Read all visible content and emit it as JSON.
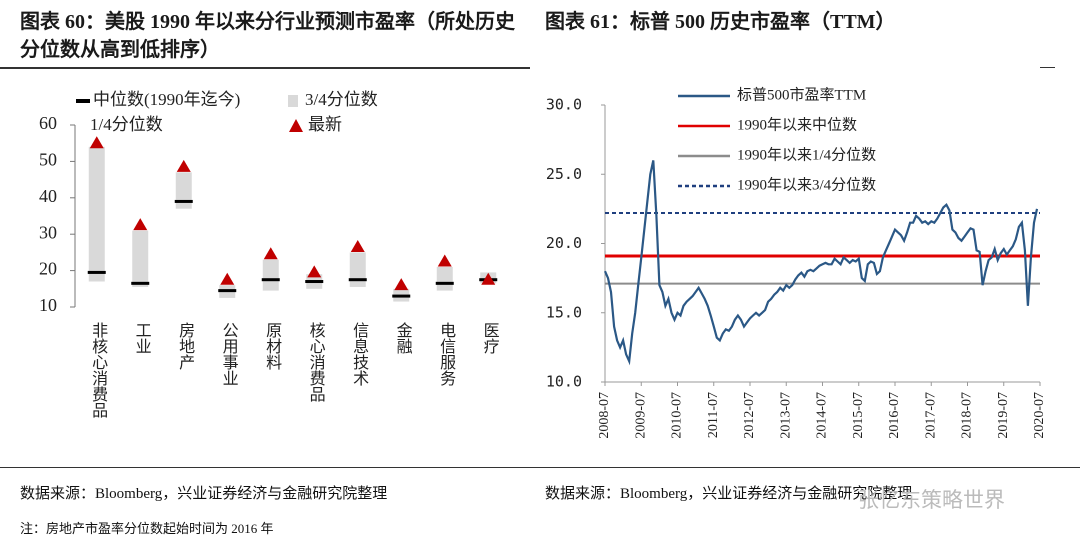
{
  "chart_data": [
    {
      "type": "range",
      "title": "图表 60：美股 1990 年以来分行业预测市盈率（所处历史分位数从高到低排序）",
      "categories": [
        "非核心消费品",
        "工业",
        "房地产",
        "公用事业",
        "原材料",
        "核心消费品",
        "信息技术",
        "金融",
        "电信服务",
        "医疗"
      ],
      "series": [
        {
          "name": "中位数(1990年迄今)",
          "color": "#000000",
          "values": [
            19.5,
            16.5,
            39,
            14.5,
            17.5,
            17,
            17.5,
            13,
            16.5,
            17.5
          ]
        },
        {
          "name": "3/4分位数",
          "color": "#d9d9d9",
          "values": [
            54,
            31,
            47,
            16,
            23,
            19,
            25,
            15,
            21,
            19.5
          ]
        },
        {
          "name": "1/4分位数",
          "color": "#ffffff",
          "values": [
            17,
            15.5,
            37,
            12.5,
            14.5,
            15,
            15.5,
            11.5,
            14.5,
            16.5
          ]
        },
        {
          "name": "最新",
          "color": "#c00000",
          "values": [
            55,
            32.5,
            48.5,
            17.5,
            24.5,
            19.5,
            26.5,
            16,
            22.5,
            17.5
          ]
        }
      ],
      "ylim": [
        10,
        60
      ],
      "yticks": [
        10,
        20,
        30,
        40,
        50,
        60
      ]
    },
    {
      "type": "line",
      "title": "图表 61：标普 500 历史市盈率（TTM）",
      "x": [
        "2008-07",
        "2008-08",
        "2008-09",
        "2008-10",
        "2008-11",
        "2008-12",
        "2009-01",
        "2009-02",
        "2009-03",
        "2009-04",
        "2009-05",
        "2009-06",
        "2009-07",
        "2009-08",
        "2009-09",
        "2009-10",
        "2009-11",
        "2009-12",
        "2010-01",
        "2010-02",
        "2010-03",
        "2010-04",
        "2010-05",
        "2010-06",
        "2010-07",
        "2010-08",
        "2010-09",
        "2010-10",
        "2010-11",
        "2010-12",
        "2011-01",
        "2011-02",
        "2011-03",
        "2011-04",
        "2011-05",
        "2011-06",
        "2011-07",
        "2011-08",
        "2011-09",
        "2011-10",
        "2011-11",
        "2011-12",
        "2012-01",
        "2012-02",
        "2012-03",
        "2012-04",
        "2012-05",
        "2012-06",
        "2012-07",
        "2012-08",
        "2012-09",
        "2012-10",
        "2012-11",
        "2012-12",
        "2013-01",
        "2013-02",
        "2013-03",
        "2013-04",
        "2013-05",
        "2013-06",
        "2013-07",
        "2013-08",
        "2013-09",
        "2013-10",
        "2013-11",
        "2013-12",
        "2014-01",
        "2014-02",
        "2014-03",
        "2014-04",
        "2014-05",
        "2014-06",
        "2014-07",
        "2014-08",
        "2014-09",
        "2014-10",
        "2014-11",
        "2014-12",
        "2015-01",
        "2015-02",
        "2015-03",
        "2015-04",
        "2015-05",
        "2015-06",
        "2015-07",
        "2015-08",
        "2015-09",
        "2015-10",
        "2015-11",
        "2015-12",
        "2016-01",
        "2016-02",
        "2016-03",
        "2016-04",
        "2016-05",
        "2016-06",
        "2016-07",
        "2016-08",
        "2016-09",
        "2016-10",
        "2016-11",
        "2016-12",
        "2017-01",
        "2017-02",
        "2017-03",
        "2017-04",
        "2017-05",
        "2017-06",
        "2017-07",
        "2017-08",
        "2017-09",
        "2017-10",
        "2017-11",
        "2017-12",
        "2018-01",
        "2018-02",
        "2018-03",
        "2018-04",
        "2018-05",
        "2018-06",
        "2018-07",
        "2018-08",
        "2018-09",
        "2018-10",
        "2018-11",
        "2018-12",
        "2019-01",
        "2019-02",
        "2019-03",
        "2019-04",
        "2019-05",
        "2019-06",
        "2019-07",
        "2019-08",
        "2019-09",
        "2019-10",
        "2019-11",
        "2019-12",
        "2020-01",
        "2020-02",
        "2020-03",
        "2020-04",
        "2020-05",
        "2020-06"
      ],
      "series": [
        {
          "name": "标普500市盈率TTM",
          "color": "#2b5886",
          "values": [
            18,
            17.5,
            16.5,
            14,
            13,
            12.5,
            13,
            12,
            11.5,
            13.5,
            15,
            17,
            19,
            21,
            23,
            25,
            26,
            22,
            17,
            16.5,
            15.5,
            16,
            15,
            14.5,
            15,
            14.8,
            15.5,
            15.8,
            16,
            16.2,
            16.5,
            16.8,
            16.4,
            16,
            15.5,
            14.8,
            14,
            13.2,
            13,
            13.5,
            13.8,
            13.7,
            14,
            14.5,
            14.8,
            14.5,
            14,
            14.3,
            14.6,
            14.8,
            15,
            14.8,
            15,
            15.2,
            15.8,
            16,
            16.3,
            16.5,
            16.8,
            16.6,
            17,
            16.8,
            17,
            17.4,
            17.7,
            17.9,
            17.6,
            18,
            18.1,
            18,
            18.2,
            18.4,
            18.5,
            18.6,
            18.5,
            18.5,
            18.9,
            18.7,
            18.5,
            19,
            18.8,
            18.6,
            18.8,
            18.7,
            18.9,
            17.5,
            17.3,
            18.5,
            18.7,
            18.6,
            17.8,
            18,
            19,
            19.5,
            20,
            20.5,
            21,
            20.8,
            20.6,
            20.2,
            20.8,
            21.5,
            21.5,
            22,
            21.8,
            21.5,
            21.6,
            21.4,
            21.6,
            21.5,
            21.8,
            22.2,
            22.6,
            22.8,
            22.4,
            21,
            20.8,
            20.4,
            20.2,
            20.5,
            20.8,
            21.1,
            21,
            19.5,
            19.4,
            17,
            18,
            18.8,
            19,
            19.6,
            18.8,
            19.3,
            19.6,
            19.2,
            19.5,
            19.8,
            20.3,
            21.2,
            21.5,
            19.5,
            15.5,
            19,
            21.5,
            22.5
          ]
        }
      ],
      "hlines": [
        {
          "name": "1990年以来中位数",
          "color": "#e00000",
          "value": 19.1,
          "style": "solid"
        },
        {
          "name": "1990年以来1/4分位数",
          "color": "#8c8c8c",
          "value": 17.1,
          "style": "solid"
        },
        {
          "name": "1990年以来3/4分位数",
          "color": "#1f3f7f",
          "value": 22.2,
          "style": "dashed"
        }
      ],
      "xlim": [
        "2008-07",
        "2020-07"
      ],
      "xticks": [
        "2008-07",
        "2009-07",
        "2010-07",
        "2011-07",
        "2012-07",
        "2013-07",
        "2014-07",
        "2015-07",
        "2016-07",
        "2017-07",
        "2018-07",
        "2019-07",
        "2020-07"
      ],
      "ylim": [
        10,
        30
      ],
      "yticks": [
        {
          "value": 10,
          "label": "10.0"
        },
        {
          "value": 15,
          "label": "15.0"
        },
        {
          "value": 20,
          "label": "20.0"
        },
        {
          "value": 25,
          "label": "25.0"
        },
        {
          "value": 30,
          "label": "30.0"
        }
      ]
    }
  ],
  "sources": [
    "数据来源：Bloomberg，兴业证券经济与金融研究院整理",
    "数据来源：Bloomberg，兴业证券经济与金融研究院整理"
  ],
  "note": "注：房地产市盈率分位数起始时间为 2016 年",
  "watermark": "张忆东策略世界"
}
